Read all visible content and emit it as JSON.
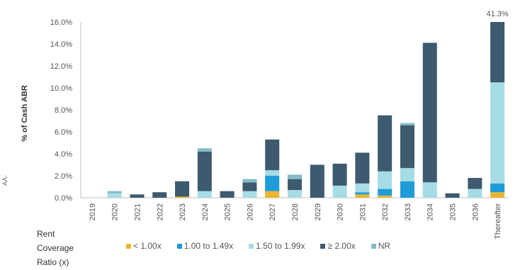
{
  "side_text": "AA-",
  "legend_title_lines": [
    "Rent",
    "Coverage",
    "Ratio (x)"
  ],
  "chart_data": {
    "type": "bar",
    "stacked": true,
    "ylabel": "% of Cash ABR",
    "ylim": [
      0,
      16
    ],
    "yticks": [
      "0.0%",
      "2.0%",
      "4.0%",
      "6.0%",
      "8.0%",
      "10.0%",
      "12.0%",
      "14.0%",
      "16.0%"
    ],
    "categories": [
      "2019",
      "2020",
      "2021",
      "2022",
      "2023",
      "2024",
      "2025",
      "2026",
      "2027",
      "2028",
      "2029",
      "2030",
      "2031",
      "2032",
      "2033",
      "2034",
      "2035",
      "2036",
      "Thereafter"
    ],
    "series": [
      {
        "name": "< 1.00x",
        "color": "#e8b630",
        "values": [
          0,
          0,
          0,
          0,
          0.1,
          0,
          0,
          0,
          0.6,
          0,
          0,
          0,
          0.3,
          0.2,
          0,
          0,
          0,
          0,
          0.5
        ]
      },
      {
        "name": "1.00 to 1.49x",
        "color": "#1f9bd7",
        "values": [
          0,
          0,
          0,
          0,
          0,
          0,
          0,
          0,
          1.4,
          0,
          0,
          0,
          0.2,
          0.6,
          1.5,
          0,
          0,
          0,
          0.8
        ]
      },
      {
        "name": "1.50 to 1.99x",
        "color": "#a6dce6",
        "values": [
          0,
          0.4,
          0,
          0,
          0,
          0.6,
          0,
          0.6,
          0.5,
          0.7,
          0,
          1.1,
          0.8,
          1.6,
          1.2,
          1.4,
          0,
          0.8,
          9.2
        ]
      },
      {
        "name": "≥ 2.00x",
        "color": "#3e5a6e",
        "values": [
          0,
          0,
          0.3,
          0.5,
          1.4,
          3.6,
          0.6,
          0.8,
          2.8,
          1.0,
          3.0,
          2.0,
          2.8,
          5.1,
          3.9,
          12.7,
          0.4,
          1.0,
          5.5
        ]
      },
      {
        "name": "NR",
        "color": "#84bcc6",
        "values": [
          0,
          0.2,
          0,
          0,
          0,
          0.3,
          0,
          0.3,
          0,
          0.4,
          0,
          0,
          0,
          0,
          0.2,
          0,
          0,
          0,
          0
        ]
      }
    ],
    "annotations": [
      {
        "category": "Thereafter",
        "text": "41.3%"
      }
    ],
    "grid": false,
    "legend_position": "bottom"
  }
}
